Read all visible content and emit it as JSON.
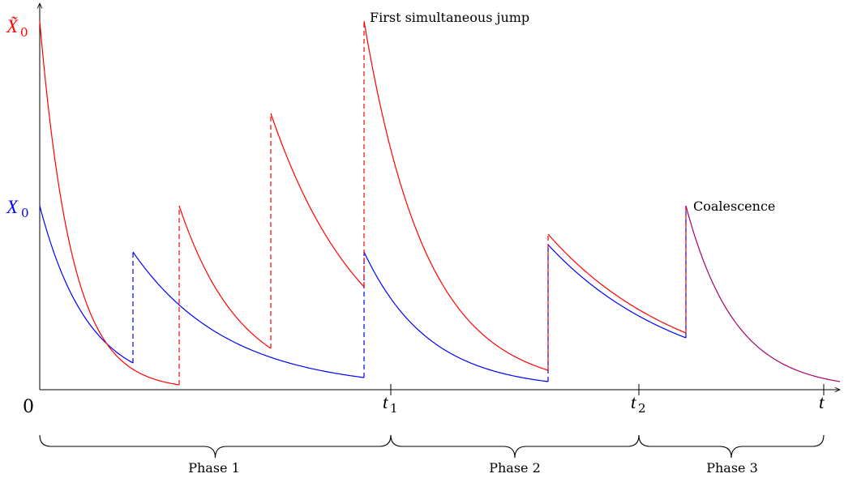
{
  "labels": {
    "origin": "0",
    "x_tilde": "X̃",
    "x_tilde_sub": "0",
    "x0": "X",
    "x0_sub": "0",
    "t1": "t",
    "t1_sub": "1",
    "t2": "t",
    "t2_sub": "2",
    "t_end": "t",
    "first_jump": "First simultaneous jump",
    "coalescence": "Coalescence"
  },
  "phases": [
    {
      "label": "Phase 1"
    },
    {
      "label": "Phase 2"
    },
    {
      "label": "Phase 3"
    }
  ],
  "colors": {
    "tilde_process": "#ff0000",
    "x_process": "#0000ff",
    "coalesced": "#aa0066",
    "axis": "#000000"
  }
}
